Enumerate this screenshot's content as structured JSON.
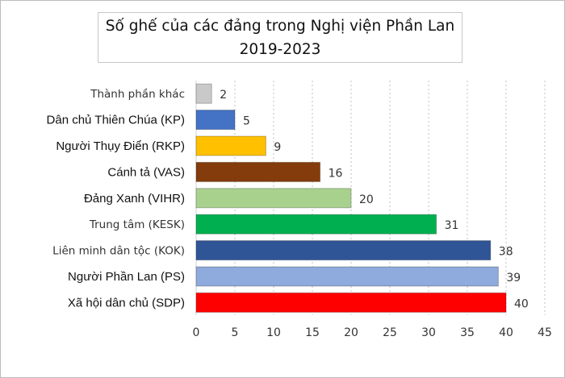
{
  "chart_data": {
    "type": "bar",
    "orientation": "horizontal",
    "title": "Số ghế của các đảng trong Nghị viện Phần Lan",
    "subtitle": "2019-2023",
    "categories": [
      "Thành phần khác",
      "Dân chủ Thiên Chúa (KP)",
      "Người Thụy Điển (RKP)",
      "Cánh tả (VAS)",
      "Đảng Xanh (VIHR)",
      "Trung tâm (KESK)",
      "Liên minh dân tộc (KOK)",
      "Người Phần Lan (PS)",
      "Xã hội dân chủ (SDP)"
    ],
    "values": [
      2,
      5,
      9,
      16,
      20,
      31,
      38,
      39,
      40
    ],
    "colors": [
      "#c9c9c9",
      "#4472c4",
      "#ffc000",
      "#843c0c",
      "#a9d18e",
      "#00b050",
      "#2f5597",
      "#8faadc",
      "#ff0000"
    ],
    "xlim": [
      0,
      45
    ],
    "xticks": [
      0,
      5,
      10,
      15,
      20,
      25,
      30,
      35,
      40,
      45
    ],
    "grid": "vertical dotted",
    "data_labels": true
  }
}
